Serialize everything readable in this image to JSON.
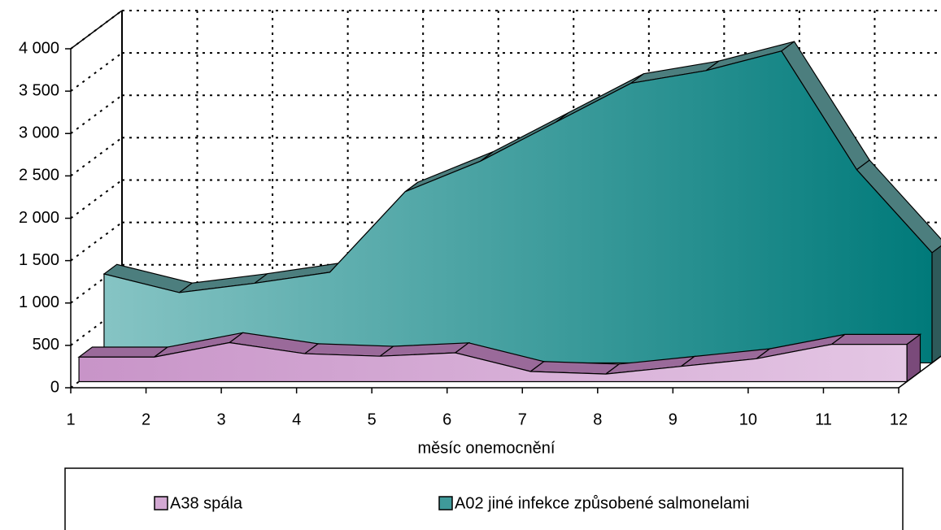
{
  "chart_data": {
    "type": "area3d",
    "x_label": "měsíc onemocnění",
    "categories": [
      "1",
      "2",
      "3",
      "4",
      "5",
      "6",
      "7",
      "8",
      "9",
      "10",
      "11",
      "12"
    ],
    "series": [
      {
        "name": "A38 spála",
        "color": "#d2a8d2",
        "values": [
          290,
          290,
          460,
          330,
          300,
          340,
          120,
          90,
          180,
          270,
          440,
          440
        ]
      },
      {
        "name": "A02 jiné infekce způsobené salmonelami",
        "color": "#3f9a9a",
        "values": [
          1050,
          830,
          940,
          1070,
          2020,
          2380,
          2840,
          3300,
          3450,
          3680,
          2280,
          1300
        ]
      }
    ],
    "ylim": [
      0,
      4000
    ],
    "yticks": [
      0,
      500,
      {
        "value": 1000,
        "label": "1 000"
      },
      {
        "value": 1500,
        "label": "1 500"
      },
      {
        "value": 2000,
        "label": "2 000"
      },
      {
        "value": 2500,
        "label": "2 500"
      },
      {
        "value": 3000,
        "label": "3 000"
      },
      {
        "value": 3500,
        "label": "3 500"
      },
      {
        "value": 4000,
        "label": "4 000"
      }
    ],
    "grid": true
  }
}
